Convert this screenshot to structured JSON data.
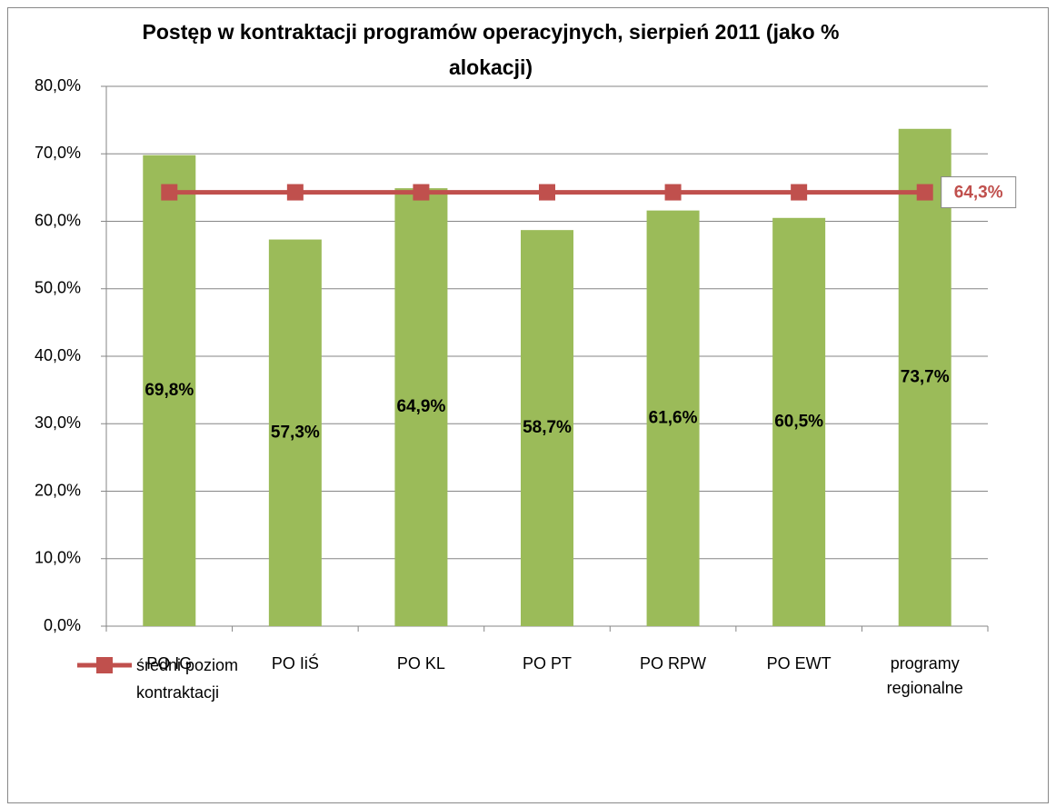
{
  "chart_data": {
    "type": "bar",
    "title": "Postęp w kontraktacji programów operacyjnych, sierpień 2011 (jako % alokacji)",
    "categories": [
      "PO IG",
      "PO IiŚ",
      "PO KL",
      "PO PT",
      "PO RPW",
      "PO EWT",
      "programy regionalne"
    ],
    "series": [
      {
        "name": null,
        "type": "bar",
        "color": "#9bbb59",
        "values": [
          69.8,
          57.3,
          64.9,
          58.7,
          61.6,
          60.5,
          73.7
        ],
        "value_labels": [
          "69,8%",
          "57,3%",
          "64,9%",
          "58,7%",
          "61,6%",
          "60,5%",
          "73,7%"
        ]
      },
      {
        "name": "średni poziom kontraktacji",
        "type": "line",
        "color": "#c0504d",
        "values": [
          64.3,
          64.3,
          64.3,
          64.3,
          64.3,
          64.3,
          64.3
        ],
        "value_labels": [
          null,
          null,
          null,
          null,
          null,
          null,
          "64,3%"
        ]
      }
    ],
    "ylim": [
      0,
      80
    ],
    "yticks": [
      {
        "value": 0,
        "label": "0,0%"
      },
      {
        "value": 10,
        "label": "10,0%"
      },
      {
        "value": 20,
        "label": "20,0%"
      },
      {
        "value": 30,
        "label": "30,0%"
      },
      {
        "value": 40,
        "label": "40,0%"
      },
      {
        "value": 50,
        "label": "50,0%"
      },
      {
        "value": 60,
        "label": "60,0%"
      },
      {
        "value": 70,
        "label": "70,0%"
      },
      {
        "value": 80,
        "label": "80,0%"
      }
    ],
    "grid": true,
    "legend": "bottom-left"
  }
}
